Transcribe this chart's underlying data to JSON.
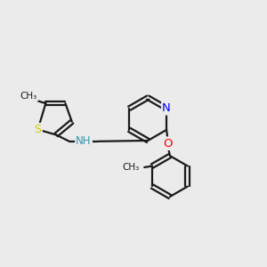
{
  "background_color": "#ebebeb",
  "bond_color": "#1a1a1a",
  "atom_colors": {
    "N": "#0000ff",
    "NH": "#3399aa",
    "O": "#ff0000",
    "S": "#cccc00",
    "C": "#1a1a1a"
  },
  "bond_width": 1.6,
  "font_size": 8.5,
  "fig_size": [
    3.0,
    3.0
  ],
  "dpi": 100
}
